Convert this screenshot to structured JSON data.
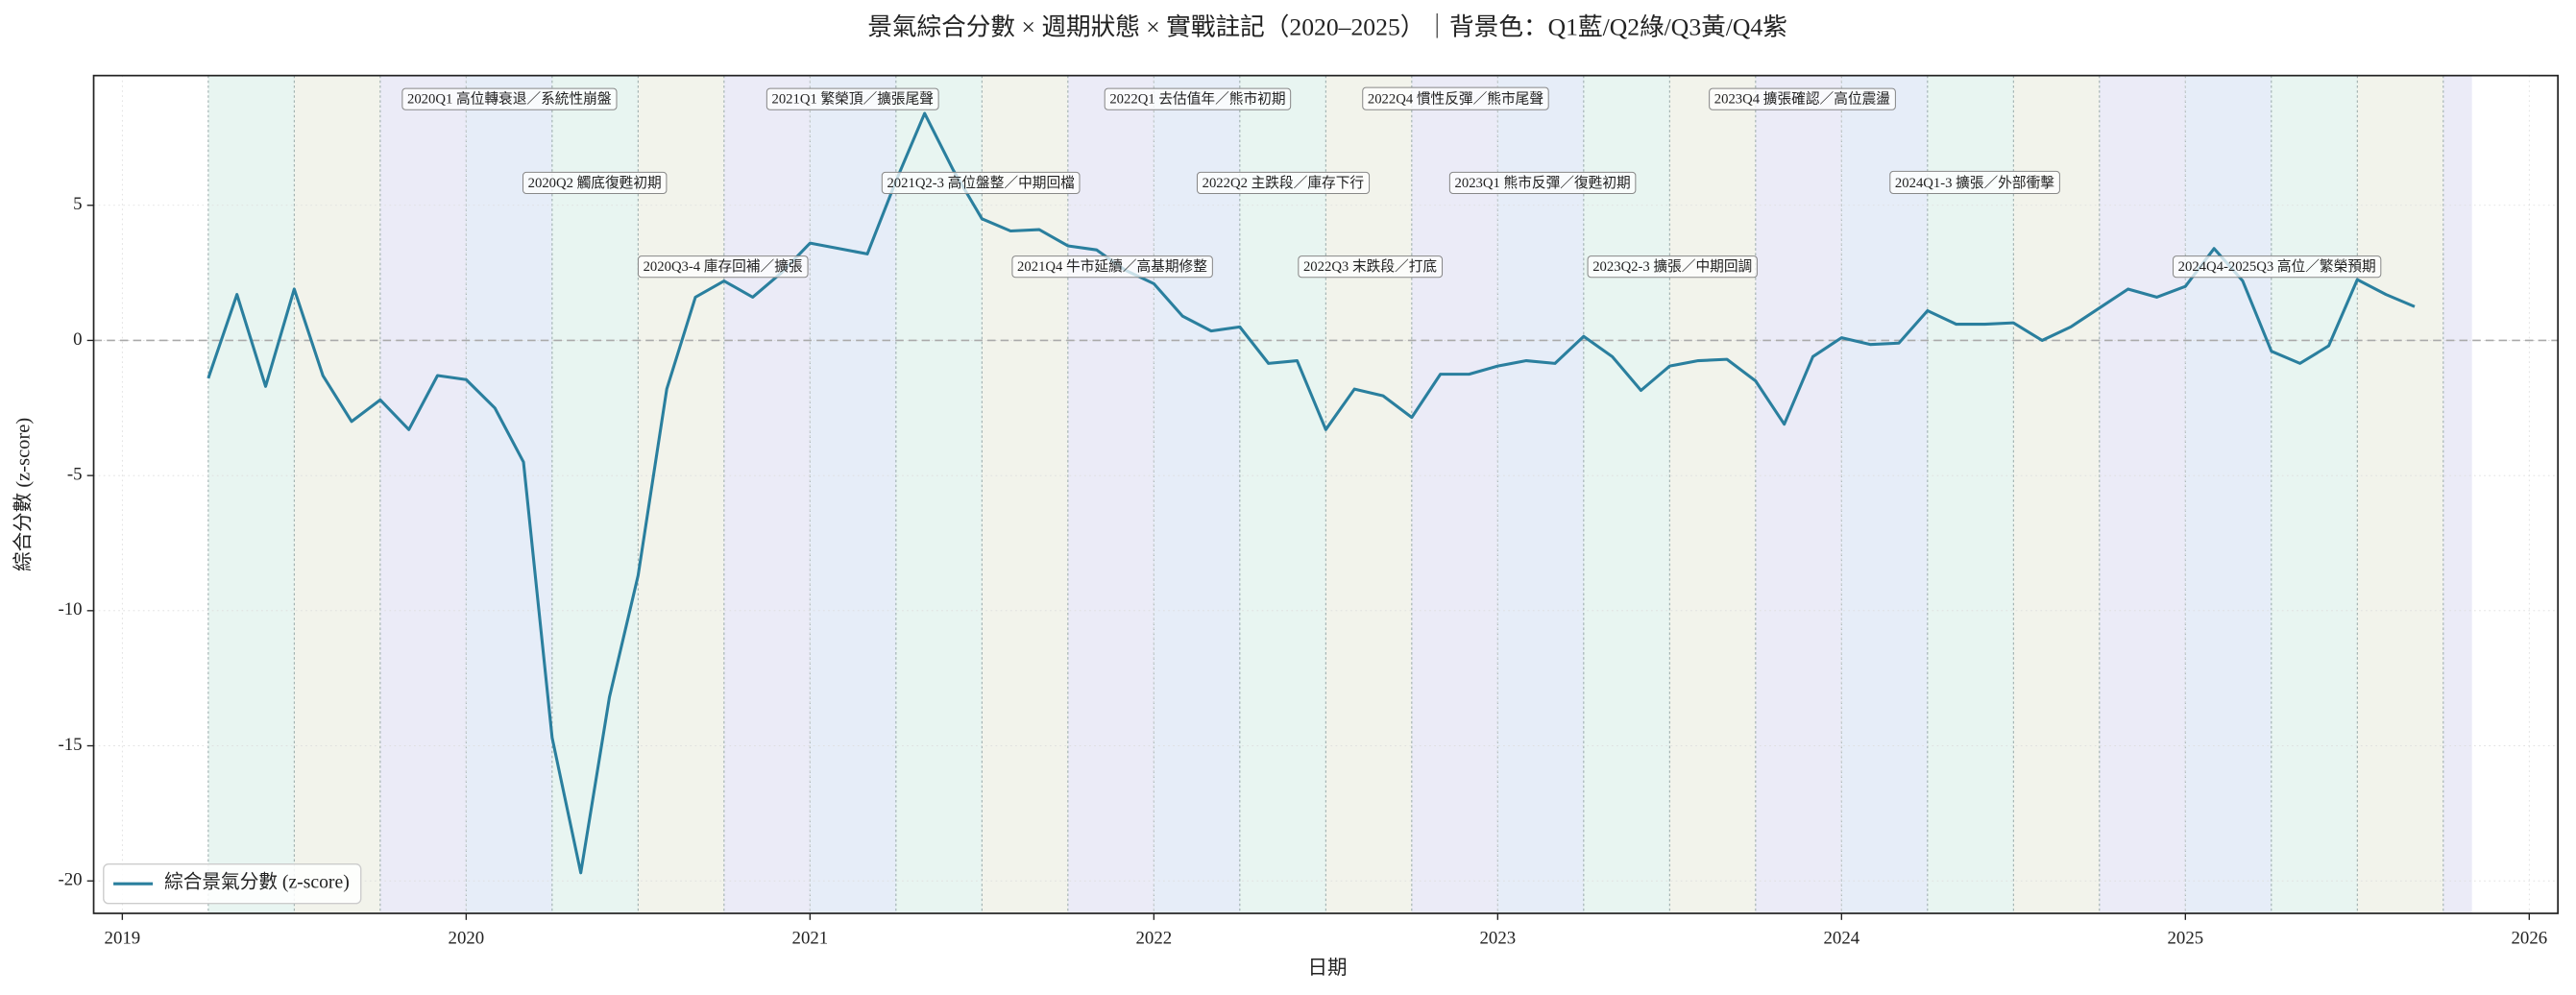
{
  "chart_data": {
    "type": "line",
    "title": "景氣綜合分數 × 週期狀態 × 實戰註記（2020–2025）｜背景色：Q1藍/Q2綠/Q3黃/Q4紫",
    "xlabel": "日期",
    "ylabel": "綜合分數 (z-score)",
    "x": [
      "2019-04",
      "2019-05",
      "2019-06",
      "2019-07",
      "2019-08",
      "2019-09",
      "2019-10",
      "2019-11",
      "2019-12",
      "2020-01",
      "2020-02",
      "2020-03",
      "2020-04",
      "2020-05",
      "2020-06",
      "2020-07",
      "2020-08",
      "2020-09",
      "2020-10",
      "2020-11",
      "2020-12",
      "2021-01",
      "2021-02",
      "2021-03",
      "2021-04",
      "2021-05",
      "2021-06",
      "2021-07",
      "2021-08",
      "2021-09",
      "2021-10",
      "2021-11",
      "2021-12",
      "2022-01",
      "2022-02",
      "2022-03",
      "2022-04",
      "2022-05",
      "2022-06",
      "2022-07",
      "2022-08",
      "2022-09",
      "2022-10",
      "2022-11",
      "2022-12",
      "2023-01",
      "2023-02",
      "2023-03",
      "2023-04",
      "2023-05",
      "2023-06",
      "2023-07",
      "2023-08",
      "2023-09",
      "2023-10",
      "2023-11",
      "2023-12",
      "2024-01",
      "2024-02",
      "2024-03",
      "2024-04",
      "2024-05",
      "2024-06",
      "2024-07",
      "2024-08",
      "2024-09",
      "2024-10",
      "2024-11",
      "2024-12",
      "2025-01",
      "2025-02",
      "2025-03",
      "2025-04",
      "2025-05",
      "2025-06",
      "2025-07",
      "2025-08",
      "2025-09"
    ],
    "series": [
      {
        "name": "綜合景氣分數 (z-score)",
        "color": "#2a7f9e",
        "values": [
          -1.4,
          1.7,
          -1.7,
          1.9,
          -1.3,
          -3.0,
          -2.2,
          -3.3,
          -1.3,
          -1.45,
          -2.5,
          -4.5,
          -14.7,
          -19.7,
          -13.2,
          -8.7,
          -1.8,
          1.6,
          2.2,
          1.6,
          2.5,
          3.6,
          3.4,
          3.2,
          5.9,
          8.4,
          6.3,
          4.5,
          4.05,
          4.1,
          3.5,
          3.35,
          2.6,
          2.1,
          0.9,
          0.35,
          0.5,
          -0.85,
          -0.75,
          -3.3,
          -1.8,
          -2.05,
          -2.85,
          -1.25,
          -1.25,
          -0.95,
          -0.75,
          -0.85,
          0.15,
          -0.6,
          -1.85,
          -0.95,
          -0.75,
          -0.7,
          -1.5,
          -3.1,
          -0.6,
          0.1,
          -0.15,
          -0.1,
          1.1,
          0.6,
          0.6,
          0.65,
          0.0,
          0.5,
          1.2,
          1.9,
          1.6,
          2.0,
          3.4,
          2.2,
          -0.4,
          -0.85,
          -0.2,
          2.25,
          1.7,
          1.25
        ]
      }
    ],
    "xlim": [
      "2018-12",
      "2026-02"
    ],
    "xticks": [
      "2019",
      "2020",
      "2021",
      "2022",
      "2023",
      "2024",
      "2025",
      "2026"
    ],
    "ylim": [
      -21.2,
      9.8
    ],
    "yticks": [
      -20,
      -15,
      -10,
      -5,
      0,
      5
    ],
    "reference_line": 0,
    "grid": true,
    "legend": "lower left",
    "quarter_colors": {
      "Q1": "#c7d6f0",
      "Q2": "#cde9e0",
      "Q3": "#e2e4d2",
      "Q4": "#d3d3ee"
    },
    "annotations": [
      "2020Q1 高位轉衰退／系統性崩盤",
      "2020Q2 觸底復甦初期",
      "2020Q3-4 庫存回補／擴張",
      "2021Q1 繁榮頂／擴張尾聲",
      "2021Q2-3 高位盤整／中期回檔",
      "2021Q4 牛市延續／高基期修整",
      "2022Q1 去估值年／熊市初期",
      "2022Q2 主跌段／庫存下行",
      "2022Q3 末跌段／打底",
      "2022Q4 慣性反彈／熊市尾聲",
      "2023Q1 熊市反彈／復甦初期",
      "2023Q2-3 擴張／中期回調",
      "2023Q4 擴張確認／高位震盪",
      "2024Q1-3 擴張／外部衝擊",
      "2024Q4-2025Q3 高位／繁榮預期"
    ]
  }
}
